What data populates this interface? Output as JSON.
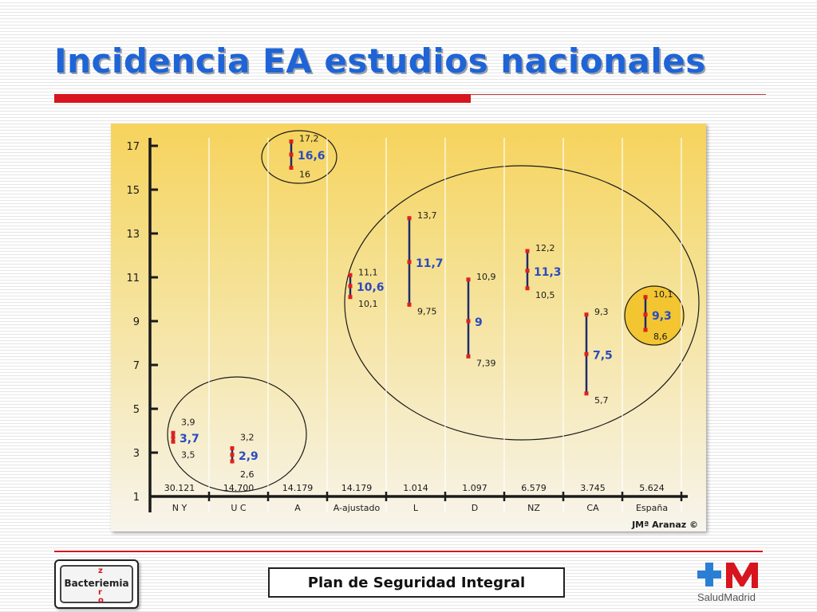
{
  "slide": {
    "title": "Incidencia EA estudios nacionales",
    "footer_center": "Plan de Seguridad Integral",
    "logo_left": {
      "word": "Bacteriemia",
      "letters": [
        "z",
        "e",
        "r",
        "o"
      ]
    },
    "logo_right": {
      "text": "SaludMadrid"
    }
  },
  "chart_data": {
    "type": "error-bar",
    "title": "",
    "xlabel": "",
    "ylabel": "",
    "ylim": [
      1,
      17
    ],
    "y_ticks": [
      1,
      3,
      5,
      7,
      9,
      11,
      13,
      15,
      17
    ],
    "grid": "vertical",
    "credit": "JMª Aranaz ©",
    "categories": [
      "N Y",
      "U C",
      "A",
      "A-ajustado",
      "L",
      "D",
      "NZ",
      "CA",
      "España"
    ],
    "sample_sizes": [
      "30.121",
      "14.700",
      "14.179",
      "14.179",
      "1.014",
      "1.097",
      "6.579",
      "3.745",
      "5.624"
    ],
    "points": [
      {
        "category": "N Y",
        "low": 3.5,
        "mid": 3.7,
        "high": 3.9,
        "low_label": "3,5",
        "mid_label": "3,7",
        "high_label": "3,9"
      },
      {
        "category": "U C",
        "low": 2.6,
        "mid": 2.9,
        "high": 3.2,
        "low_label": "2,6",
        "mid_label": "2,9",
        "high_label": "3,2"
      },
      {
        "category": "A",
        "low": 16,
        "mid": 16.6,
        "high": 17.2,
        "low_label": "16",
        "mid_label": "16,6",
        "high_label": "17,2"
      },
      {
        "category": "A-ajustado",
        "low": 10.1,
        "mid": 10.6,
        "high": 11.1,
        "low_label": "10,1",
        "mid_label": "10,6",
        "high_label": "11,1"
      },
      {
        "category": "L",
        "low": 9.75,
        "mid": 11.7,
        "high": 13.7,
        "low_label": "9,75",
        "mid_label": "11,7",
        "high_label": "13,7"
      },
      {
        "category": "D",
        "low": 7.39,
        "mid": 9,
        "high": 10.9,
        "low_label": "7,39",
        "mid_label": "9",
        "high_label": "10,9"
      },
      {
        "category": "NZ",
        "low": 10.5,
        "mid": 11.3,
        "high": 12.2,
        "low_label": "10,5",
        "mid_label": "11,3",
        "high_label": "12,2"
      },
      {
        "category": "CA",
        "low": 5.7,
        "mid": 7.5,
        "high": 9.3,
        "low_label": "5,7",
        "mid_label": "7,5",
        "high_label": "9,3"
      },
      {
        "category": "España",
        "low": 8.6,
        "mid": 9.3,
        "high": 10.1,
        "low_label": "8,6",
        "mid_label": "9,3",
        "high_label": "10,1"
      }
    ],
    "colors": {
      "bar": "#1f2a6b",
      "endpoint": "#e0201a",
      "mid_label": "#2a4bc0",
      "bg_top": "#f6d35c",
      "bg_bottom": "#f7f4ec",
      "highlight_fill": "#f2c531"
    }
  }
}
